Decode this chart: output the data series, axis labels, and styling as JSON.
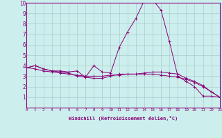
{
  "xlabel": "Windchill (Refroidissement éolien,°C)",
  "bg_color": "#cceeed",
  "grid_color": "#aacccc",
  "line_color": "#880077",
  "xlim": [
    0,
    23
  ],
  "ylim": [
    0,
    10
  ],
  "xticks": [
    0,
    1,
    2,
    3,
    4,
    5,
    6,
    7,
    8,
    9,
    10,
    11,
    12,
    13,
    14,
    15,
    16,
    17,
    18,
    19,
    20,
    21,
    22,
    23
  ],
  "yticks": [
    1,
    2,
    3,
    4,
    5,
    6,
    7,
    8,
    9,
    10
  ],
  "series": [
    [
      3.8,
      4.0,
      3.7,
      3.5,
      3.5,
      3.4,
      3.5,
      2.9,
      4.0,
      3.4,
      3.3,
      5.7,
      7.2,
      8.5,
      10.2,
      10.3,
      9.3,
      6.3,
      3.0,
      2.5,
      2.0,
      1.1,
      1.1,
      1.0
    ],
    [
      3.8,
      4.0,
      3.7,
      3.5,
      3.4,
      3.3,
      3.0,
      2.9,
      2.8,
      2.8,
      3.0,
      3.2,
      3.2,
      3.2,
      3.3,
      3.4,
      3.4,
      3.3,
      3.2,
      2.8,
      2.5,
      2.1,
      1.5,
      1.0
    ],
    [
      3.8,
      3.7,
      3.5,
      3.4,
      3.3,
      3.2,
      3.1,
      3.0,
      3.0,
      3.0,
      3.1,
      3.1,
      3.2,
      3.2,
      3.2,
      3.2,
      3.1,
      3.0,
      2.9,
      2.7,
      2.4,
      2.0,
      1.5,
      1.0
    ]
  ]
}
